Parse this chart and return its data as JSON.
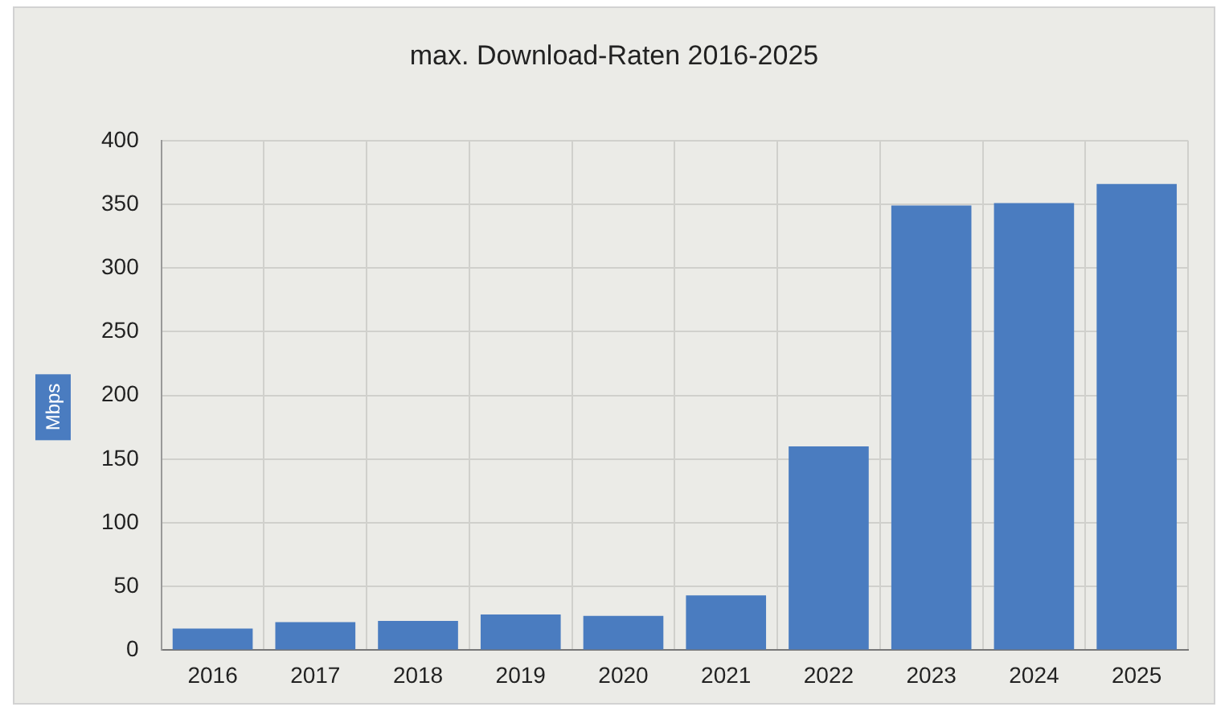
{
  "chart_data": {
    "type": "bar",
    "title": "max. Download-Raten 2016-2025",
    "ylabel": "Mbps",
    "categories": [
      "2016",
      "2017",
      "2018",
      "2019",
      "2020",
      "2021",
      "2022",
      "2023",
      "2024",
      "2025"
    ],
    "values": [
      17,
      22,
      23,
      28,
      27,
      43,
      160,
      349,
      351,
      366
    ],
    "color": "#4a7cc0",
    "ylim": [
      0,
      400
    ],
    "yticks": [
      0,
      50,
      100,
      150,
      200,
      250,
      300,
      350,
      400
    ],
    "grid": true,
    "legend": false
  }
}
